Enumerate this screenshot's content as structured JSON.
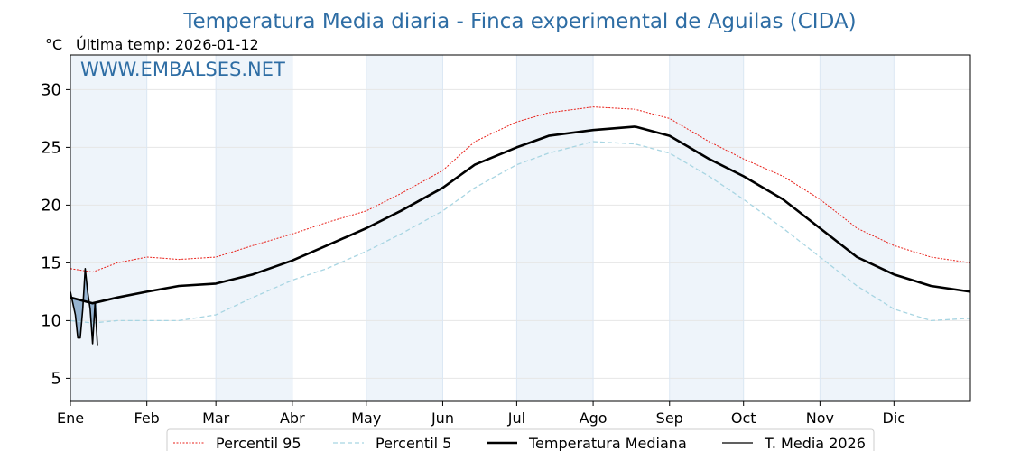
{
  "title": "Temperatura Media diaria - Finca experimental de Aguilas (CIDA)",
  "unit": "°C",
  "last_temp_label": "Última temp: 2026-01-12",
  "watermark": "WWW.EMBALSES.NET",
  "colors": {
    "title": "#2e6da4",
    "p95": "#e8221b",
    "p5": "#a8d5e2",
    "median": "#000000",
    "current": "#000000",
    "current_fill": "#4f7fae",
    "band": "#eef4fa"
  },
  "chart_data": {
    "type": "line",
    "xlabel": "",
    "ylabel": "°C",
    "ylim": [
      3,
      33
    ],
    "xlim": [
      1,
      366
    ],
    "grid": true,
    "legend_position": "bottom",
    "yticks": [
      5,
      10,
      15,
      20,
      25,
      30
    ],
    "month_ticks": [
      {
        "label": "Ene",
        "day": 1
      },
      {
        "label": "Feb",
        "day": 32
      },
      {
        "label": "Mar",
        "day": 60
      },
      {
        "label": "Abr",
        "day": 91
      },
      {
        "label": "May",
        "day": 121
      },
      {
        "label": "Jun",
        "day": 152
      },
      {
        "label": "Jul",
        "day": 182
      },
      {
        "label": "Ago",
        "day": 213
      },
      {
        "label": "Sep",
        "day": 244
      },
      {
        "label": "Oct",
        "day": 274
      },
      {
        "label": "Nov",
        "day": 305
      },
      {
        "label": "Dic",
        "day": 335
      }
    ],
    "series": [
      {
        "name": "Percentil 95",
        "x_day": [
          1,
          10,
          20,
          32,
          45,
          60,
          75,
          91,
          105,
          121,
          135,
          152,
          165,
          182,
          195,
          213,
          230,
          244,
          260,
          274,
          290,
          305,
          320,
          335,
          350,
          366
        ],
        "values": [
          14.5,
          14.2,
          15.0,
          15.5,
          15.3,
          15.5,
          16.5,
          17.5,
          18.5,
          19.5,
          21.0,
          23.0,
          25.5,
          27.2,
          28.0,
          28.5,
          28.3,
          27.5,
          25.5,
          24.0,
          22.5,
          20.5,
          18.0,
          16.5,
          15.5,
          15.0
        ]
      },
      {
        "name": "Percentil 5",
        "x_day": [
          1,
          10,
          20,
          32,
          45,
          60,
          75,
          91,
          105,
          121,
          135,
          152,
          165,
          182,
          195,
          213,
          230,
          244,
          260,
          274,
          290,
          305,
          320,
          335,
          350,
          366
        ],
        "values": [
          10.0,
          9.8,
          10.0,
          10.0,
          10.0,
          10.5,
          12.0,
          13.5,
          14.5,
          16.0,
          17.5,
          19.5,
          21.5,
          23.5,
          24.5,
          25.5,
          25.3,
          24.5,
          22.5,
          20.5,
          18.0,
          15.5,
          13.0,
          11.0,
          10.0,
          10.2
        ]
      },
      {
        "name": "Temperatura Mediana",
        "x_day": [
          1,
          10,
          20,
          32,
          45,
          60,
          75,
          91,
          105,
          121,
          135,
          152,
          165,
          182,
          195,
          213,
          230,
          244,
          260,
          274,
          290,
          305,
          320,
          335,
          350,
          366
        ],
        "values": [
          12.0,
          11.5,
          12.0,
          12.5,
          13.0,
          13.2,
          14.0,
          15.2,
          16.5,
          18.0,
          19.5,
          21.5,
          23.5,
          25.0,
          26.0,
          26.5,
          26.8,
          26.0,
          24.0,
          22.5,
          20.5,
          18.0,
          15.5,
          14.0,
          13.0,
          12.5
        ]
      },
      {
        "name": "T. Media 2026",
        "x_day": [
          1,
          2,
          3,
          4,
          5,
          6,
          7,
          8,
          9,
          10,
          11,
          12
        ],
        "values": [
          12.5,
          11.5,
          10.5,
          8.5,
          8.5,
          11.0,
          14.5,
          12.5,
          11.0,
          8.0,
          11.5,
          7.8
        ]
      }
    ]
  },
  "legend": {
    "items": [
      {
        "label": "Percentil 95"
      },
      {
        "label": "Percentil 5"
      },
      {
        "label": "Temperatura Mediana"
      },
      {
        "label": "T. Media 2026"
      }
    ]
  }
}
